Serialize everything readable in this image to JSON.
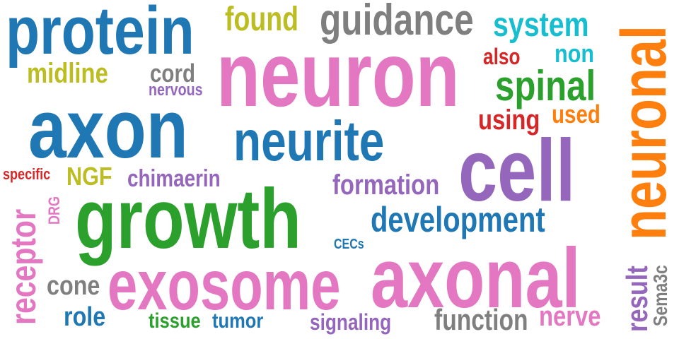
{
  "colors": {
    "blue": "#1f77b4",
    "pink": "#e377c2",
    "green": "#2ca02c",
    "purple": "#9467bd",
    "orange": "#ff7f0e",
    "olive": "#bcbd22",
    "gray": "#7f7f7f",
    "cyan": "#17becf",
    "red": "#d62728"
  },
  "words": [
    {
      "text": "protein",
      "color": "#1f77b4"
    },
    {
      "text": "found",
      "color": "#bcbd22"
    },
    {
      "text": "guidance",
      "color": "#7f7f7f"
    },
    {
      "text": "system",
      "color": "#17becf"
    },
    {
      "text": "neuronal",
      "color": "#ff7f0e"
    },
    {
      "text": "midline",
      "color": "#bcbd22"
    },
    {
      "text": "cord",
      "color": "#7f7f7f"
    },
    {
      "text": "nervous",
      "color": "#9467bd"
    },
    {
      "text": "neuron",
      "color": "#e377c2"
    },
    {
      "text": "also",
      "color": "#d62728"
    },
    {
      "text": "non",
      "color": "#17becf"
    },
    {
      "text": "spinal",
      "color": "#2ca02c"
    },
    {
      "text": "axon",
      "color": "#1f77b4"
    },
    {
      "text": "neurite",
      "color": "#1f77b4"
    },
    {
      "text": "using",
      "color": "#d62728"
    },
    {
      "text": "used",
      "color": "#ff7f0e"
    },
    {
      "text": "cell",
      "color": "#9467bd"
    },
    {
      "text": "specific",
      "color": "#d62728"
    },
    {
      "text": "NGF",
      "color": "#bcbd22"
    },
    {
      "text": "chimaerin",
      "color": "#9467bd"
    },
    {
      "text": "formation",
      "color": "#9467bd"
    },
    {
      "text": "receptor",
      "color": "#e377c2"
    },
    {
      "text": "DRG",
      "color": "#e377c2"
    },
    {
      "text": "growth",
      "color": "#2ca02c"
    },
    {
      "text": "development",
      "color": "#1f77b4"
    },
    {
      "text": "CECs",
      "color": "#1f77b4"
    },
    {
      "text": "exosome",
      "color": "#e377c2"
    },
    {
      "text": "axonal",
      "color": "#e377c2"
    },
    {
      "text": "cone",
      "color": "#7f7f7f"
    },
    {
      "text": "role",
      "color": "#1f77b4"
    },
    {
      "text": "tissue",
      "color": "#2ca02c"
    },
    {
      "text": "tumor",
      "color": "#1f77b4"
    },
    {
      "text": "signaling",
      "color": "#9467bd"
    },
    {
      "text": "function",
      "color": "#7f7f7f"
    },
    {
      "text": "nerve",
      "color": "#e377c2"
    },
    {
      "text": "result",
      "color": "#9467bd"
    },
    {
      "text": "Sema3c",
      "color": "#7f7f7f"
    }
  ]
}
